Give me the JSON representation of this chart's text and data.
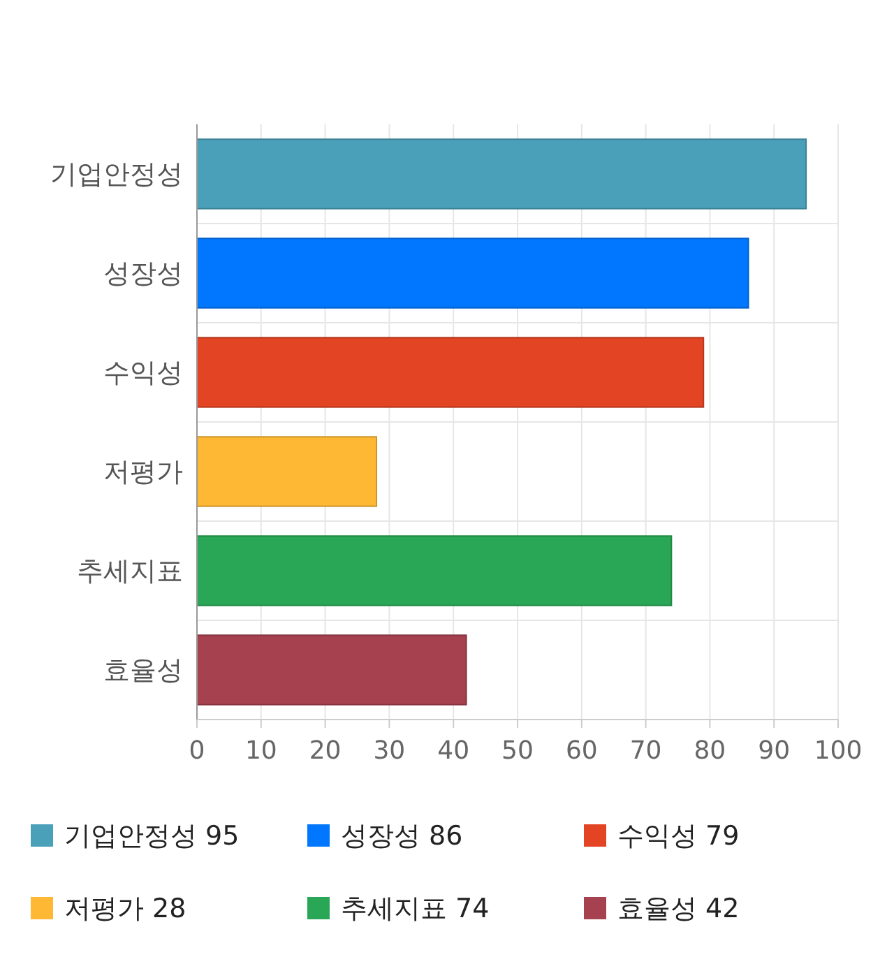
{
  "chart_data": {
    "type": "bar",
    "orientation": "horizontal",
    "stacked": true,
    "categories": [
      "기업안정성",
      "성장성",
      "수익성",
      "저평가",
      "추세지표",
      "효율성"
    ],
    "series": [
      {
        "name": "기업안정성 95",
        "color": "#4aa0b8",
        "values": [
          95,
          null,
          null,
          null,
          null,
          null
        ]
      },
      {
        "name": "성장성 86",
        "color": "#0077fe",
        "values": [
          null,
          86,
          null,
          null,
          null,
          null
        ]
      },
      {
        "name": "수익성 79",
        "color": "#e24424",
        "values": [
          null,
          null,
          79,
          null,
          null,
          null
        ]
      },
      {
        "name": "저평가 28",
        "color": "#ffb833",
        "values": [
          null,
          null,
          null,
          28,
          null,
          null
        ]
      },
      {
        "name": "추세지표 74",
        "color": "#29a756",
        "values": [
          null,
          null,
          null,
          null,
          74,
          null
        ]
      },
      {
        "name": "효율성 42",
        "color": "#a6414f",
        "values": [
          null,
          null,
          null,
          null,
          null,
          42
        ]
      }
    ],
    "xlim": [
      0,
      100
    ],
    "xticks": [
      0,
      10,
      20,
      30,
      40,
      50,
      60,
      70,
      80,
      90,
      100
    ],
    "grid": true,
    "legend": "bottom"
  }
}
